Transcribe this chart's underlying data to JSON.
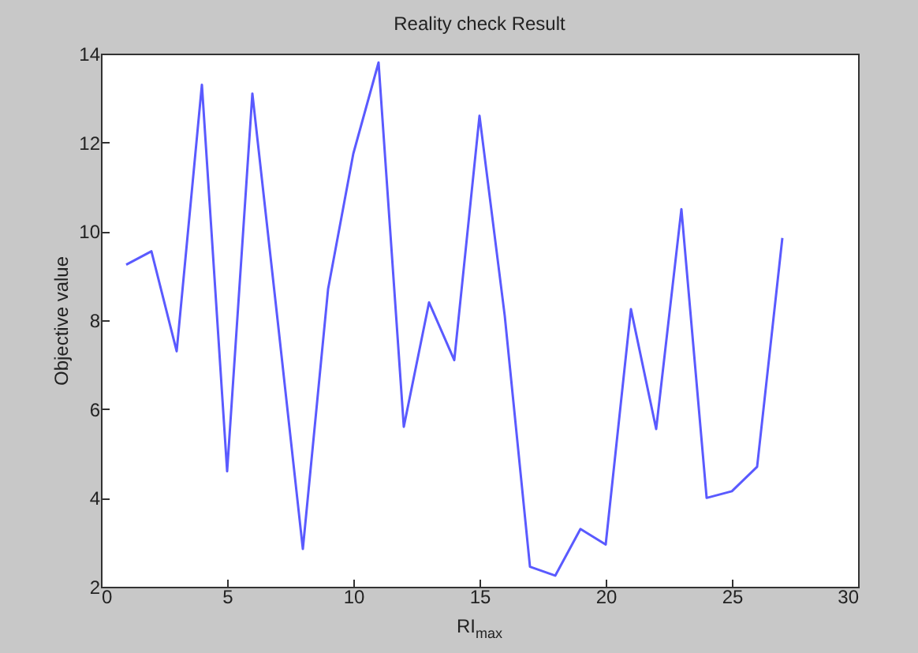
{
  "chart_data": {
    "type": "line",
    "title": "Reality check Result",
    "xlabel": "RI$_{max}$",
    "ylabel": "Objective value",
    "x": [
      1,
      2,
      3,
      4,
      5,
      6,
      7,
      8,
      9,
      10,
      11,
      12,
      13,
      14,
      15,
      16,
      17,
      18,
      19,
      20,
      21,
      22,
      23,
      24,
      25,
      26,
      27
    ],
    "series": [
      {
        "color": "#5a5aff",
        "values": [
          9.25,
          9.55,
          7.3,
          13.3,
          4.6,
          13.1,
          8.0,
          2.85,
          8.7,
          11.75,
          13.8,
          5.6,
          8.4,
          7.1,
          12.6,
          8.1,
          2.45,
          2.25,
          3.3,
          2.95,
          8.25,
          5.55,
          10.5,
          4.0,
          4.15,
          4.7,
          9.85
        ]
      }
    ],
    "xlim": [
      0,
      30
    ],
    "xticks": [
      0,
      5,
      10,
      15,
      20,
      25,
      30
    ],
    "ylim": [
      2,
      14
    ],
    "yticks": [
      2,
      4,
      6,
      8,
      10,
      12,
      14
    ],
    "grid": false
  }
}
